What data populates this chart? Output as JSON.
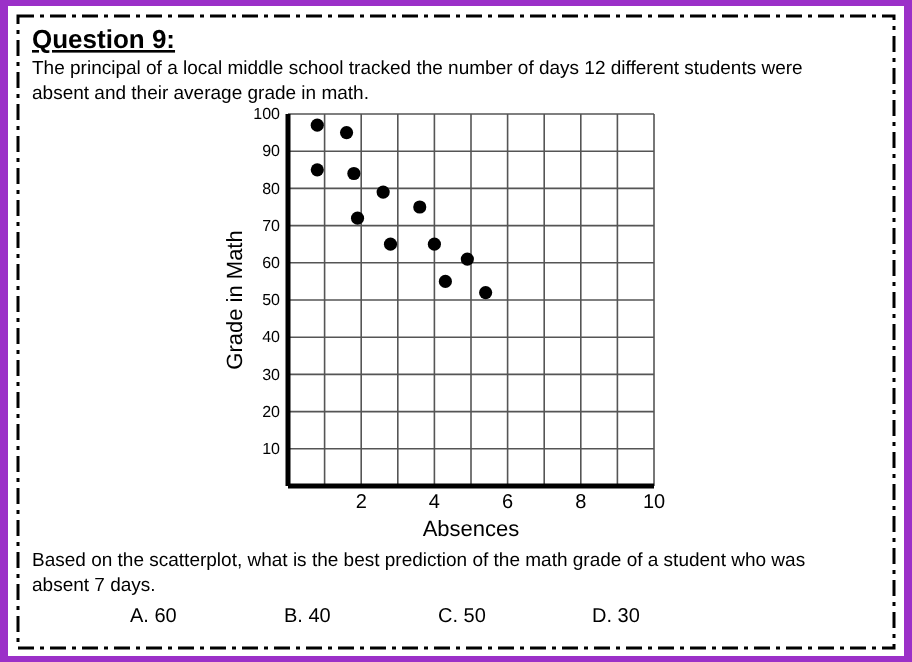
{
  "chart_data": {
    "type": "scatter",
    "title": "Question 9:",
    "subtitle": "The principal of a local middle school tracked the number of days 12 different students were absent and their average grade in math.",
    "xlabel": "Absences",
    "ylabel": "Grade in Math",
    "x": [
      0.8,
      0.8,
      1.6,
      1.8,
      1.9,
      2.6,
      2.8,
      3.6,
      4.0,
      4.3,
      4.9,
      5.4
    ],
    "values": [
      97,
      85,
      95,
      84,
      72,
      79,
      65,
      75,
      65,
      55,
      61,
      52
    ],
    "color": "#000000",
    "marker": "circle",
    "xlim": [
      0,
      10
    ],
    "xticks": [
      {
        "value": 1,
        "label": null
      },
      2,
      {
        "value": 3,
        "label": null
      },
      4,
      {
        "value": 5,
        "label": null
      },
      6,
      {
        "value": 7,
        "label": null
      },
      8,
      {
        "value": 9,
        "label": null
      },
      10
    ],
    "ylim": [
      0,
      100
    ],
    "yticks": [
      10,
      20,
      30,
      40,
      50,
      60,
      70,
      80,
      90,
      100
    ],
    "grid": true,
    "annotations": [
      "Based on the scatterplot, what is the best prediction of the math grade of a student who was absent 7 days.",
      "A. 60",
      "B. 40",
      "C. 50",
      "D. 30"
    ]
  }
}
